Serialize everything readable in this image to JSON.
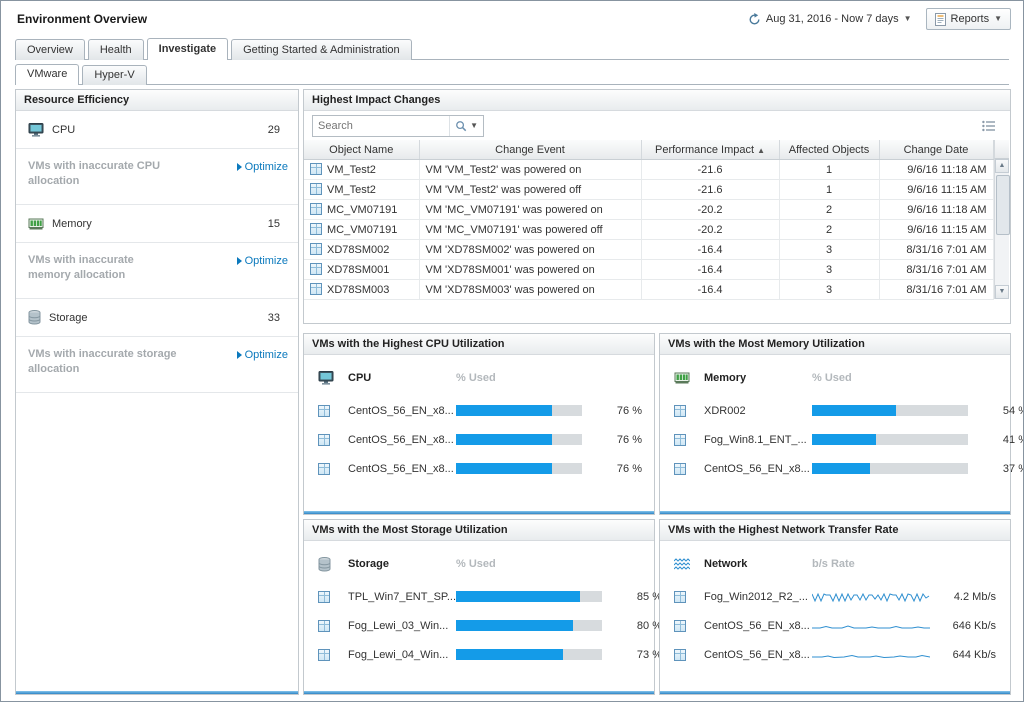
{
  "header": {
    "title": "Environment Overview",
    "time_range": "Aug 31, 2016 - Now 7 days",
    "reports_label": "Reports"
  },
  "tabs": [
    "Overview",
    "Health",
    "Investigate",
    "Getting Started & Administration"
  ],
  "subtabs": [
    "VMware",
    "Hyper-V"
  ],
  "resource_efficiency": {
    "title": "Resource Efficiency",
    "optimize_label": "Optimize",
    "items": [
      {
        "label": "CPU",
        "value": "29",
        "note": "VMs with inaccurate CPU allocation"
      },
      {
        "label": "Memory",
        "value": "15",
        "note": "VMs with inaccurate memory allocation"
      },
      {
        "label": "Storage",
        "value": "33",
        "note": "VMs with inaccurate storage allocation"
      }
    ]
  },
  "impact_changes": {
    "title": "Highest Impact Changes",
    "search_placeholder": "Search",
    "sort_indicator": "▲",
    "columns": [
      "Object Name",
      "Change Event",
      "Performance Impact",
      "Affected Objects",
      "Change Date"
    ],
    "rows": [
      {
        "object": "VM_Test2",
        "event": "VM 'VM_Test2' was powered on",
        "impact": "-21.6",
        "affected": "1",
        "date": "9/6/16 11:18 AM"
      },
      {
        "object": "VM_Test2",
        "event": "VM 'VM_Test2' was powered off",
        "impact": "-21.6",
        "affected": "1",
        "date": "9/6/16 11:15 AM"
      },
      {
        "object": "MC_VM07191",
        "event": "VM 'MC_VM07191' was powered on",
        "impact": "-20.2",
        "affected": "2",
        "date": "9/6/16 11:18 AM"
      },
      {
        "object": "MC_VM07191",
        "event": "VM 'MC_VM07191' was powered off",
        "impact": "-20.2",
        "affected": "2",
        "date": "9/6/16 11:15 AM"
      },
      {
        "object": "XD78SM002",
        "event": "VM 'XD78SM002' was powered on",
        "impact": "-16.4",
        "affected": "3",
        "date": "8/31/16 7:01 AM"
      },
      {
        "object": "XD78SM001",
        "event": "VM 'XD78SM001' was powered on",
        "impact": "-16.4",
        "affected": "3",
        "date": "8/31/16 7:01 AM"
      },
      {
        "object": "XD78SM003",
        "event": "VM 'XD78SM003' was powered on",
        "impact": "-16.4",
        "affected": "3",
        "date": "8/31/16 7:01 AM"
      }
    ]
  },
  "quadrants": {
    "cpu": {
      "title": "VMs with the Highest CPU Utilization",
      "metric": "CPU",
      "unit": "% Used",
      "rows": [
        {
          "name": "CentOS_56_EN_x8...",
          "pct": 76,
          "pct_label": "76 %"
        },
        {
          "name": "CentOS_56_EN_x8...",
          "pct": 76,
          "pct_label": "76 %"
        },
        {
          "name": "CentOS_56_EN_x8...",
          "pct": 76,
          "pct_label": "76 %"
        }
      ]
    },
    "memory": {
      "title": "VMs with the Most Memory Utilization",
      "metric": "Memory",
      "unit": "% Used",
      "rows": [
        {
          "name": "XDR002",
          "pct": 54,
          "pct_label": "54 %"
        },
        {
          "name": "Fog_Win8.1_ENT_...",
          "pct": 41,
          "pct_label": "41 %"
        },
        {
          "name": "CentOS_56_EN_x8...",
          "pct": 37,
          "pct_label": "37 %"
        }
      ]
    },
    "storage": {
      "title": "VMs with the Most Storage Utilization",
      "metric": "Storage",
      "unit": "% Used",
      "rows": [
        {
          "name": "TPL_Win7_ENT_SP...",
          "pct": 85,
          "pct_label": "85 %"
        },
        {
          "name": "Fog_Lewi_03_Win...",
          "pct": 80,
          "pct_label": "80 %"
        },
        {
          "name": "Fog_Lewi_04_Win...",
          "pct": 73,
          "pct_label": "73 %"
        }
      ]
    },
    "network": {
      "title": "VMs with the Highest Network Transfer Rate",
      "metric": "Network",
      "unit": "b/s Rate",
      "rows": [
        {
          "name": "Fog_Win2012_R2_...",
          "rate": "4.2 Mb/s"
        },
        {
          "name": "CentOS_56_EN_x8...",
          "rate": "646 Kb/s"
        },
        {
          "name": "CentOS_56_EN_x8...",
          "rate": "644 Kb/s"
        }
      ]
    }
  },
  "colors": {
    "bar_blue": "#149be8",
    "optimize_blue": "#0b79bd",
    "panel_border": "#c3c9ce"
  }
}
